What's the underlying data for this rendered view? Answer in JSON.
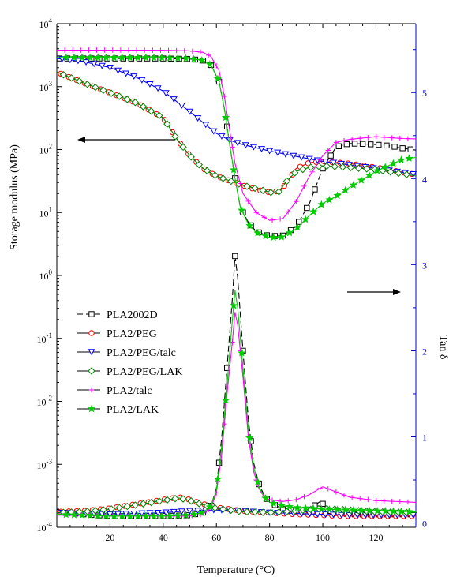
{
  "chart_data": {
    "type": "line",
    "xlabel": "Temperature (°C)",
    "ylabel_left": "Storage modulus (MPa)",
    "ylabel_right": "Tan δ",
    "xlim": [
      0,
      135
    ],
    "ylim_left_log": [
      0.0001,
      10000
    ],
    "ylim_right": [
      -0.05,
      5.8
    ],
    "x_ticks": [
      "20",
      "40",
      "60",
      "80",
      "100",
      "120"
    ],
    "x_tick_values": [
      20,
      40,
      60,
      80,
      100,
      120
    ],
    "y_left_tick_labels": [
      {
        "base": "10",
        "exp": "-4",
        "value": -4
      },
      {
        "base": "10",
        "exp": "-3",
        "value": -3
      },
      {
        "base": "10",
        "exp": "-2",
        "value": -2
      },
      {
        "base": "10",
        "exp": "-1",
        "value": -1
      },
      {
        "base": "10",
        "exp": "0",
        "value": 0
      },
      {
        "base": "10",
        "exp": "1",
        "value": 1
      },
      {
        "base": "10",
        "exp": "2",
        "value": 2
      },
      {
        "base": "10",
        "exp": "3",
        "value": 3
      },
      {
        "base": "10",
        "exp": "4",
        "value": 4
      }
    ],
    "y_right_ticks": [
      "0",
      "1",
      "2",
      "3",
      "4",
      "5"
    ],
    "y_right_tick_values": [
      0,
      1,
      2,
      3,
      4,
      5
    ],
    "right_axis_color": "#0000cc",
    "grid": false,
    "legend_position": "left-middle",
    "annotations": [
      {
        "kind": "arrow",
        "direction": "left",
        "meaning": "storage modulus curves use left axis"
      },
      {
        "kind": "arrow",
        "direction": "right",
        "meaning": "tan delta curves use right axis"
      }
    ],
    "series": [
      {
        "name": "PLA2002D",
        "color": "#000000",
        "marker": "square",
        "dash": "8,4",
        "modulus_x": [
          0,
          10,
          20,
          30,
          40,
          50,
          55,
          58,
          61,
          63,
          65,
          67,
          69,
          72,
          75,
          80,
          85,
          90,
          95,
          100,
          105,
          110,
          115,
          120,
          125,
          130,
          135
        ],
        "modulus_y": [
          2800,
          2800,
          2800,
          2800,
          2800,
          2750,
          2600,
          2200,
          1200,
          450,
          120,
          35,
          12,
          7,
          5,
          4.2,
          4.3,
          6,
          14,
          50,
          110,
          125,
          123,
          120,
          115,
          105,
          98
        ],
        "tan_x": [
          0,
          10,
          20,
          30,
          40,
          50,
          55,
          58,
          60,
          62,
          64,
          66,
          67,
          68,
          70,
          72,
          74,
          76,
          78,
          80,
          85,
          90,
          95,
          99,
          103,
          110,
          120,
          135
        ],
        "tan_y": [
          0.13,
          0.1,
          0.08,
          0.08,
          0.08,
          0.09,
          0.12,
          0.2,
          0.4,
          1.0,
          1.8,
          2.6,
          3.1,
          2.85,
          2.0,
          1.2,
          0.7,
          0.45,
          0.32,
          0.24,
          0.16,
          0.14,
          0.16,
          0.25,
          0.14,
          0.1,
          0.1,
          0.1
        ]
      },
      {
        "name": "PLA2/PEG",
        "color": "#ff0000",
        "marker": "circle",
        "dash": "",
        "modulus_x": [
          0,
          10,
          20,
          30,
          40,
          45,
          50,
          55,
          60,
          65,
          70,
          75,
          80,
          84,
          87,
          90,
          95,
          100,
          110,
          120,
          135
        ],
        "modulus_y": [
          1700,
          1150,
          800,
          550,
          320,
          150,
          80,
          50,
          38,
          32,
          27,
          23,
          21,
          22,
          32,
          50,
          62,
          65,
          60,
          52,
          40
        ],
        "tan_x": [
          0,
          10,
          20,
          30,
          40,
          46,
          50,
          55,
          60,
          65,
          70,
          80,
          90,
          100,
          110,
          120,
          135
        ],
        "tan_y": [
          0.13,
          0.14,
          0.17,
          0.22,
          0.27,
          0.3,
          0.27,
          0.22,
          0.18,
          0.16,
          0.14,
          0.12,
          0.1,
          0.09,
          0.08,
          0.08,
          0.08
        ]
      },
      {
        "name": "PLA2/PEG/talc",
        "color": "#0000ff",
        "marker": "triangle-down",
        "dash": "",
        "modulus_x": [
          0,
          10,
          20,
          30,
          40,
          50,
          60,
          65,
          70,
          80,
          90,
          100,
          110,
          120,
          135
        ],
        "modulus_y": [
          2800,
          2500,
          2000,
          1400,
          850,
          400,
          180,
          140,
          120,
          95,
          78,
          65,
          57,
          50,
          40
        ],
        "tan_x": [
          0,
          10,
          20,
          30,
          40,
          50,
          60,
          70,
          80,
          90,
          100,
          110,
          120,
          135
        ],
        "tan_y": [
          0.12,
          0.11,
          0.1,
          0.11,
          0.12,
          0.14,
          0.15,
          0.14,
          0.12,
          0.11,
          0.1,
          0.09,
          0.09,
          0.09
        ]
      },
      {
        "name": "PLA2/PEG/LAK",
        "color": "#008000",
        "marker": "diamond",
        "dash": "",
        "modulus_x": [
          0,
          10,
          20,
          30,
          40,
          45,
          50,
          55,
          60,
          65,
          70,
          75,
          80,
          83,
          86,
          90,
          95,
          100,
          110,
          120,
          135
        ],
        "modulus_y": [
          1700,
          1150,
          800,
          550,
          320,
          150,
          80,
          50,
          38,
          32,
          27,
          24,
          21,
          20,
          30,
          45,
          52,
          55,
          52,
          48,
          38
        ],
        "tan_x": [
          0,
          10,
          20,
          30,
          40,
          46,
          50,
          55,
          60,
          65,
          70,
          80,
          90,
          100,
          110,
          120,
          135
        ],
        "tan_y": [
          0.12,
          0.13,
          0.16,
          0.21,
          0.26,
          0.29,
          0.26,
          0.21,
          0.17,
          0.15,
          0.13,
          0.12,
          0.14,
          0.17,
          0.15,
          0.13,
          0.12
        ]
      },
      {
        "name": "PLA2/talc",
        "color": "#ff00ff",
        "marker": "plus",
        "dash": "",
        "modulus_x": [
          0,
          10,
          20,
          30,
          40,
          50,
          55,
          58,
          61,
          63,
          65,
          67,
          70,
          75,
          80,
          85,
          90,
          95,
          100,
          105,
          110,
          120,
          130,
          135
        ],
        "modulus_y": [
          3800,
          3800,
          3800,
          3800,
          3780,
          3700,
          3500,
          3000,
          1800,
          700,
          200,
          60,
          20,
          10,
          7.5,
          8,
          15,
          38,
          80,
          130,
          145,
          160,
          150,
          148
        ],
        "tan_x": [
          0,
          10,
          20,
          30,
          40,
          50,
          55,
          58,
          60,
          62,
          64,
          66,
          67,
          68,
          70,
          72,
          74,
          76,
          78,
          80,
          85,
          90,
          95,
          100,
          105,
          110,
          120,
          135
        ],
        "tan_y": [
          0.09,
          0.09,
          0.08,
          0.08,
          0.08,
          0.08,
          0.1,
          0.18,
          0.35,
          0.8,
          1.5,
          2.1,
          2.45,
          2.3,
          1.7,
          1.0,
          0.6,
          0.4,
          0.3,
          0.27,
          0.25,
          0.27,
          0.33,
          0.42,
          0.36,
          0.3,
          0.26,
          0.24
        ]
      },
      {
        "name": "PLA2/LAK",
        "color": "#00cc00",
        "marker": "star",
        "dash": "",
        "modulus_x": [
          0,
          10,
          20,
          30,
          40,
          50,
          55,
          58,
          61,
          63,
          65,
          67,
          69,
          72,
          75,
          80,
          85,
          90,
          95,
          100,
          105,
          110,
          120,
          130,
          135
        ],
        "modulus_y": [
          2900,
          2900,
          2900,
          2900,
          2880,
          2800,
          2600,
          2200,
          1200,
          450,
          120,
          35,
          12,
          6.5,
          4.8,
          4.0,
          4.1,
          5.5,
          9,
          14,
          18,
          25,
          45,
          70,
          75
        ],
        "tan_x": [
          0,
          10,
          20,
          30,
          40,
          50,
          55,
          58,
          60,
          62,
          64,
          66,
          67,
          68,
          70,
          72,
          74,
          76,
          78,
          80,
          85,
          90,
          95,
          100,
          110,
          120,
          135
        ],
        "tan_y": [
          0.1,
          0.09,
          0.08,
          0.08,
          0.08,
          0.09,
          0.12,
          0.2,
          0.38,
          0.9,
          1.6,
          2.35,
          2.7,
          2.5,
          1.8,
          1.1,
          0.65,
          0.42,
          0.3,
          0.24,
          0.2,
          0.18,
          0.17,
          0.16,
          0.15,
          0.14,
          0.13
        ]
      }
    ]
  }
}
